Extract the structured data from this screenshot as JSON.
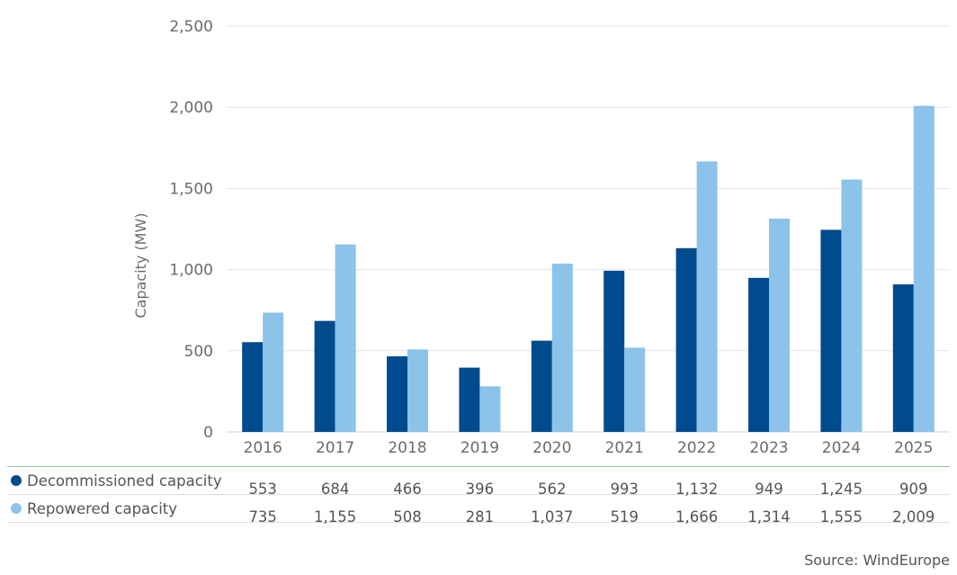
{
  "chart_data": {
    "type": "bar",
    "ylabel": "Capacity (MW)",
    "ylim": [
      0,
      2500
    ],
    "yticks": [
      0,
      500,
      1000,
      1500,
      2000,
      2500
    ],
    "ytick_labels": [
      "0",
      "500",
      "1,000",
      "1,500",
      "2,000",
      "2,500"
    ],
    "categories": [
      "2016",
      "2017",
      "2018",
      "2019",
      "2020",
      "2021",
      "2022",
      "2023",
      "2024",
      "2025"
    ],
    "series": [
      {
        "name": "Decommissioned capacity",
        "color": "#004b8d",
        "values": [
          553,
          684,
          466,
          396,
          562,
          993,
          1132,
          949,
          1245,
          909
        ],
        "labels": [
          "553",
          "684",
          "466",
          "396",
          "562",
          "993",
          "1,132",
          "949",
          "1,245",
          "909"
        ]
      },
      {
        "name": "Repowered capacity",
        "color": "#8cc3ea",
        "values": [
          735,
          1155,
          508,
          281,
          1037,
          519,
          1666,
          1314,
          1555,
          2009
        ],
        "labels": [
          "735",
          "1,155",
          "508",
          "281",
          "1,037",
          "519",
          "1,666",
          "1,314",
          "1,555",
          "2,009"
        ]
      }
    ],
    "grid": true
  },
  "source": "Source: WindEurope"
}
